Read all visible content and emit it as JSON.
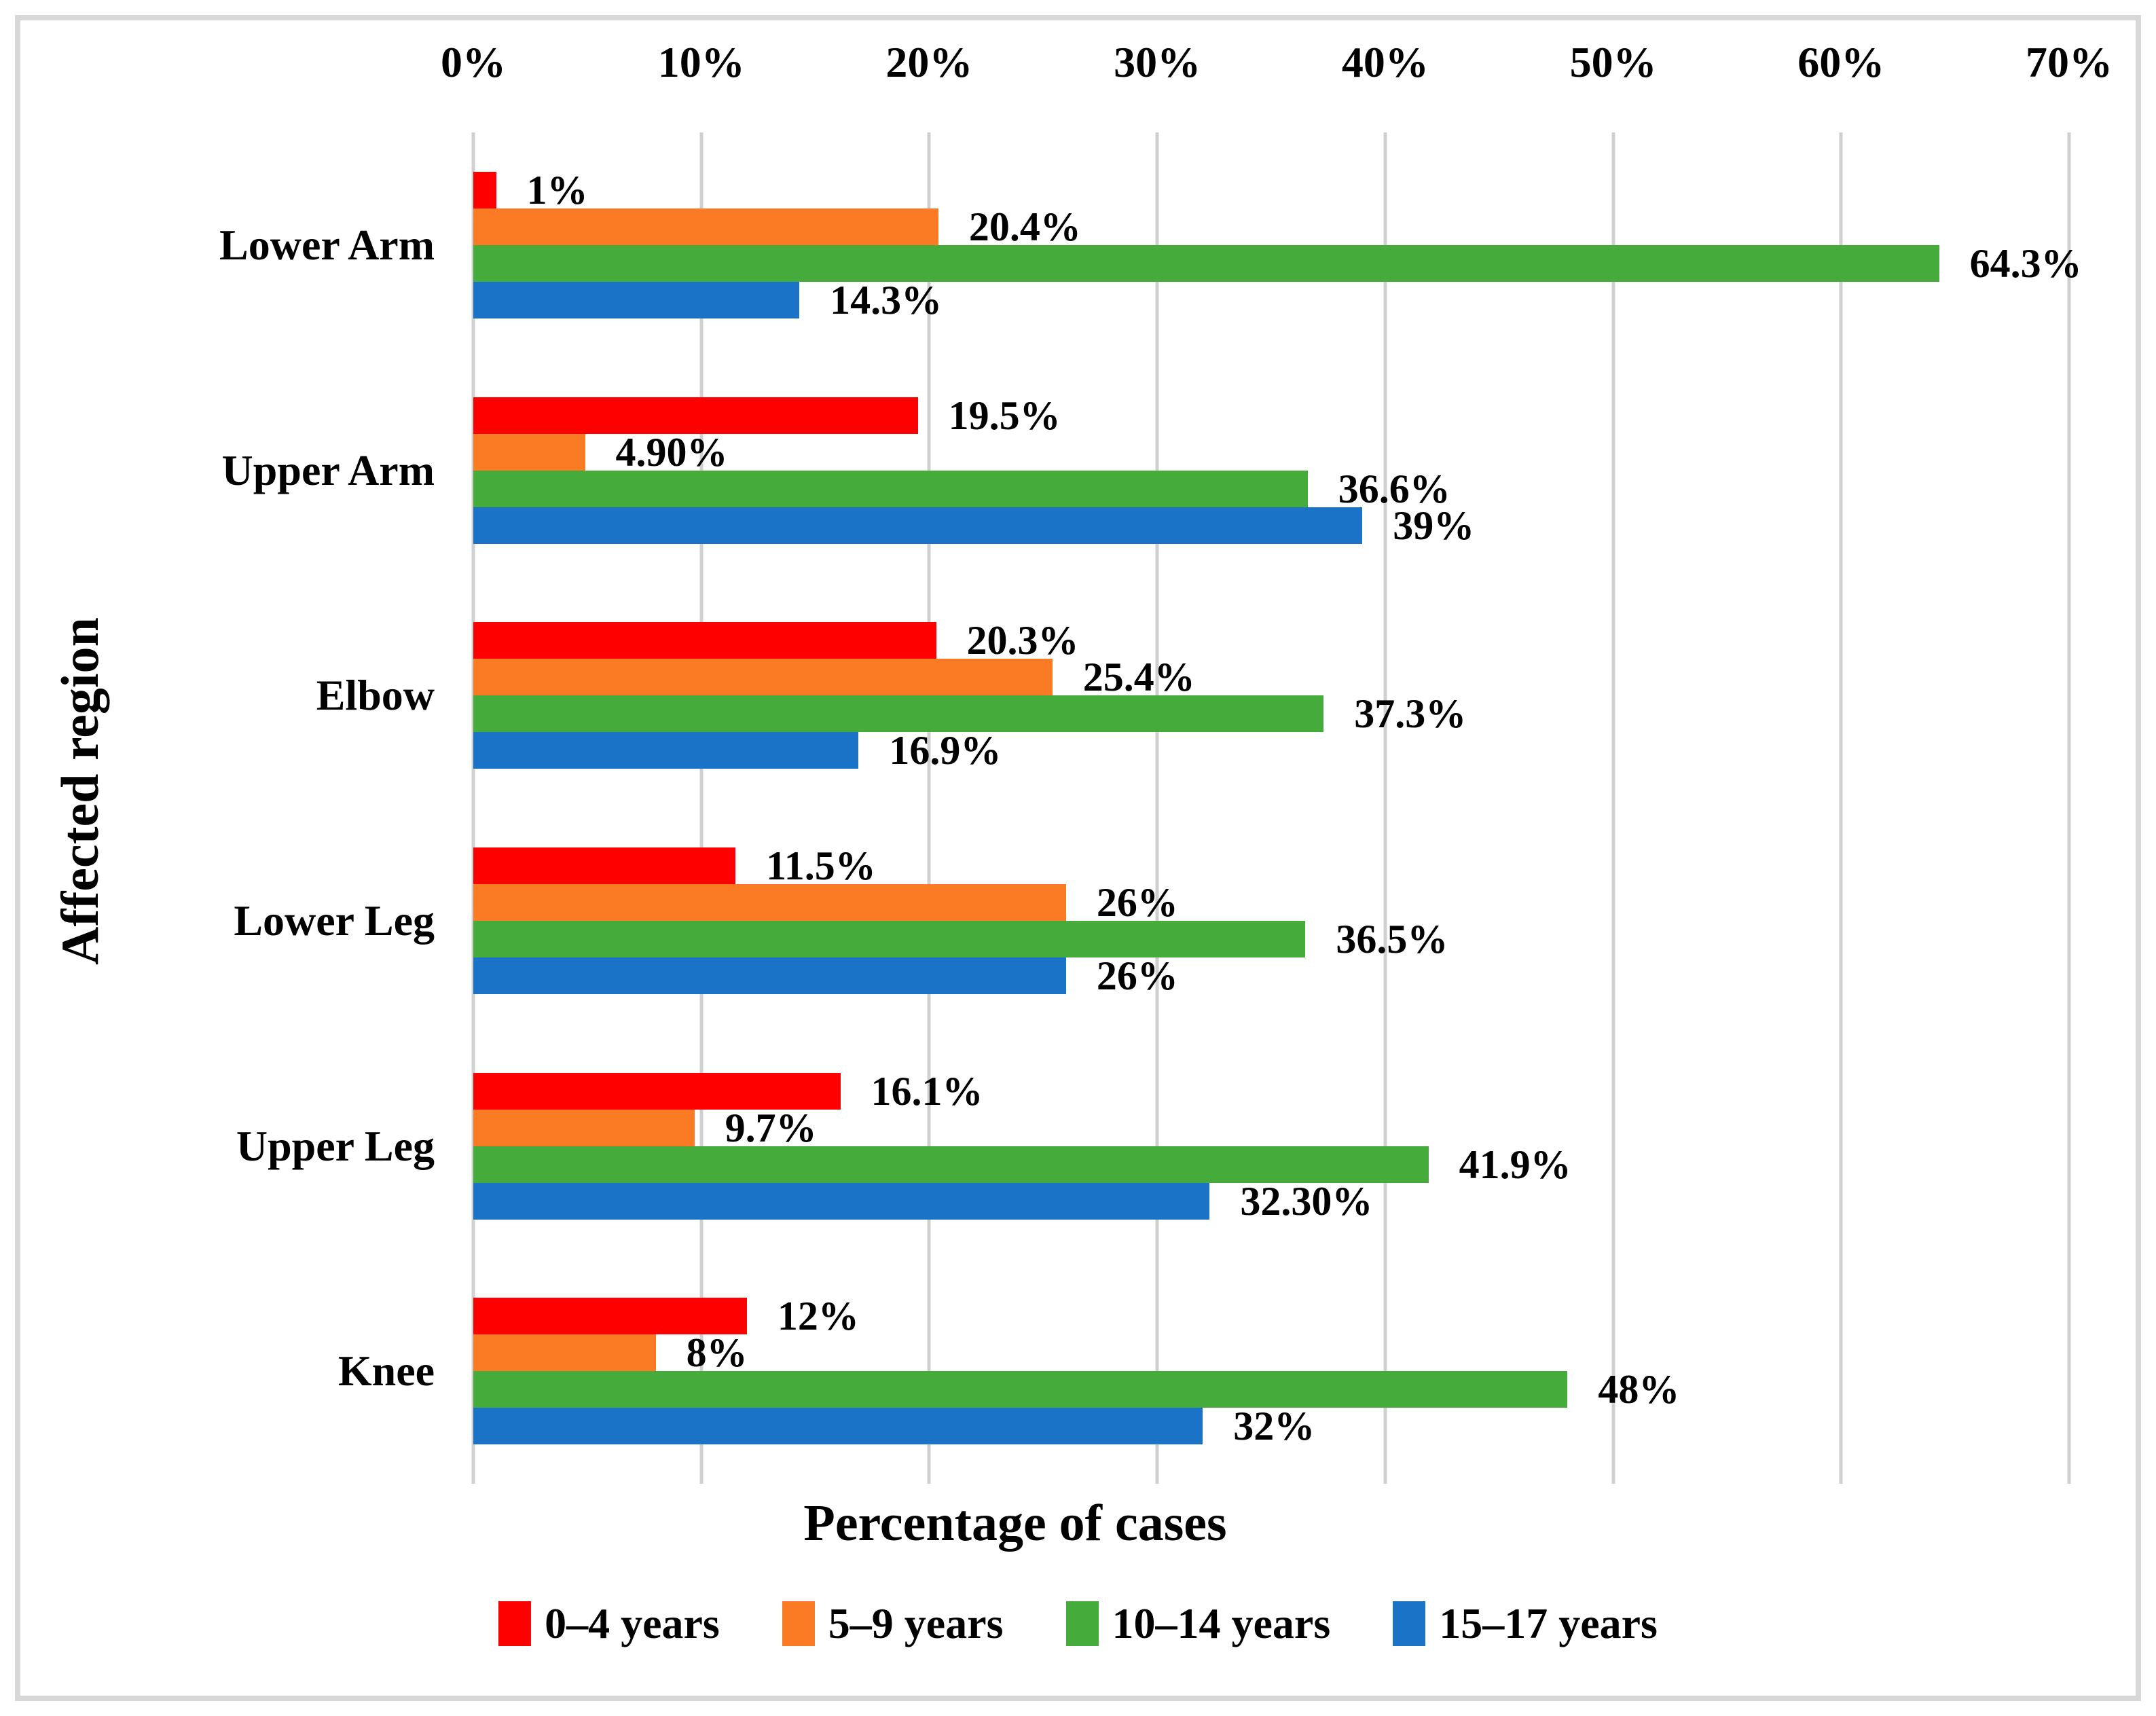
{
  "frame": {
    "border_color": "#D8D8D8",
    "background_color": "#FFFFFF",
    "gridline_color": "#D0D0D0"
  },
  "chart_data": {
    "type": "bar",
    "orientation": "horizontal",
    "title": "",
    "xlabel": "Percentage of cases",
    "ylabel": "Affected region",
    "xlim": [
      0,
      70
    ],
    "x_tick_labels": [
      "0%",
      "10%",
      "20%",
      "30%",
      "40%",
      "50%",
      "60%",
      "70%"
    ],
    "grid": "vertical",
    "legend_position": "bottom",
    "categories": [
      "Lower Arm",
      "Upper Arm",
      "Elbow",
      "Lower Leg",
      "Upper Leg",
      "Knee"
    ],
    "series": [
      {
        "name": "0–4 years",
        "color": "#FF0000",
        "values": [
          1,
          19.5,
          20.3,
          11.5,
          16.1,
          12
        ],
        "labels": [
          "1%",
          "19.5%",
          "20.3%",
          "11.5%",
          "16.1%",
          "12%"
        ]
      },
      {
        "name": "5–9 years",
        "color": "#FB7B25",
        "values": [
          20.4,
          4.9,
          25.4,
          26,
          9.7,
          8
        ],
        "labels": [
          "20.4%",
          "4.90%",
          "25.4%",
          "26%",
          "9.7%",
          "8%"
        ]
      },
      {
        "name": "10–14 years",
        "color": "#45AC3C",
        "values": [
          64.3,
          36.6,
          37.3,
          36.5,
          41.9,
          48
        ],
        "labels": [
          "64.3%",
          "36.6%",
          "37.3%",
          "36.5%",
          "41.9%",
          "48%"
        ]
      },
      {
        "name": "15–17 years",
        "color": "#1A73C7",
        "values": [
          14.3,
          39,
          16.9,
          26,
          32.3,
          32
        ],
        "labels": [
          "14.3%",
          "39%",
          "16.9%",
          "26%",
          "32.30%",
          "32%"
        ]
      }
    ]
  }
}
